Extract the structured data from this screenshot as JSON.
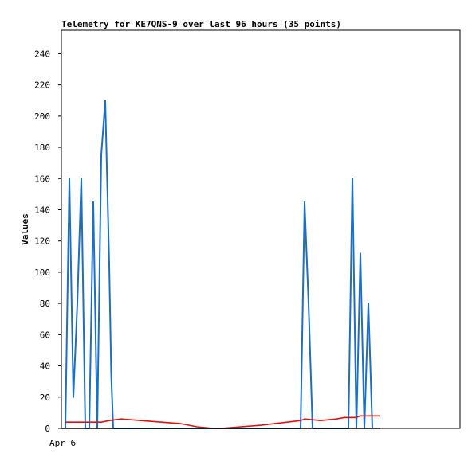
{
  "chart_data": {
    "type": "line",
    "title": "Telemetry for KE7QNS-9 over last 96 hours (35 points)",
    "ylabel": "Values",
    "xlabel": "",
    "x_tick_labels": [
      "Apr 6"
    ],
    "y_ticks": [
      0,
      20,
      40,
      60,
      80,
      100,
      120,
      140,
      160,
      180,
      200,
      220,
      240
    ],
    "ylim": [
      0,
      255
    ],
    "xlim": [
      0,
      100
    ],
    "grid": false,
    "legend": "none",
    "series": [
      {
        "color": "#1e6fbf",
        "x": [
          1,
          2,
          3,
          4,
          5,
          6,
          7,
          8,
          9,
          10,
          11,
          12,
          12.5,
          13,
          13.5,
          14,
          15,
          16,
          60,
          61,
          62,
          63,
          64,
          72,
          73,
          74,
          75,
          76,
          77,
          78
        ],
        "values": [
          0,
          160,
          20,
          80,
          160,
          0,
          0,
          145,
          0,
          175,
          210,
          105,
          35,
          0,
          0,
          0,
          0,
          0,
          0,
          145,
          80,
          0,
          0,
          0,
          160,
          0,
          112,
          0,
          80,
          0
        ]
      },
      {
        "color": "#e01010",
        "x": [
          1,
          5,
          10,
          12,
          15,
          20,
          30,
          34,
          38,
          40,
          50,
          60,
          61,
          65,
          69,
          71,
          73,
          74,
          75,
          80
        ],
        "values": [
          4,
          4,
          4,
          5,
          6,
          5,
          3,
          1,
          0,
          0,
          2,
          5,
          6,
          5,
          6,
          7,
          7,
          7,
          8,
          8
        ]
      },
      {
        "color": "#000000",
        "x": [
          0,
          80
        ],
        "values": [
          0,
          0
        ]
      }
    ]
  }
}
